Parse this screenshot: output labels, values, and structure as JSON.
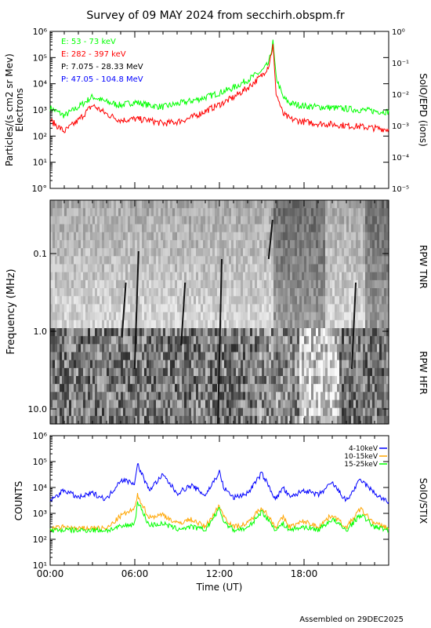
{
  "title": "Survey of 09 MAY 2024 from secchirh.obspm.fr",
  "footer": "Assembled on 29DEC2025",
  "colors": {
    "green": "#00ff00",
    "red": "#ff0000",
    "black": "#000000",
    "blue": "#0000ff",
    "orange": "#ffa500"
  },
  "chart_data": [
    {
      "type": "line",
      "panel": "particles",
      "ylabel": "Particles/(s cm2 sr Mev) Electrons",
      "ylabel_lines": [
        "Particles/(s cm2 sr Mev)",
        "Electrons"
      ],
      "right_label": "SolO/EPD (ions)",
      "yscale": "log",
      "ylim": [
        1,
        1000000
      ],
      "y2lim": [
        1e-05,
        1
      ],
      "yticks": [
        "10°",
        "10¹",
        "10²",
        "10³",
        "10⁴",
        "10⁵",
        "10⁶"
      ],
      "y2ticks": [
        "10⁻⁵",
        "10⁻⁴",
        "10⁻³",
        "10⁻²",
        "10⁻¹",
        "10⁰"
      ],
      "legend": [
        "E: 53 - 73 keV",
        "E: 282 - 397 keV",
        "P: 7.075 - 28.33 MeV",
        "P: 47.05 - 104.8 MeV"
      ],
      "x": [
        0,
        1,
        2,
        3,
        4,
        5,
        6,
        7,
        8,
        9,
        10,
        11,
        12,
        13,
        14,
        15,
        15.5,
        15.8,
        16,
        16.5,
        17,
        18,
        19,
        20,
        21,
        22,
        23,
        24
      ],
      "series": [
        {
          "name": "E: 53 - 73 keV",
          "color": "green",
          "values": [
            1200,
            600,
            1300,
            3200,
            2000,
            1500,
            2000,
            1500,
            1300,
            1700,
            2200,
            3000,
            4500,
            7000,
            14000,
            30000,
            60000,
            400000,
            20000,
            3000,
            1800,
            1400,
            1300,
            1200,
            1100,
            1000,
            900,
            850
          ]
        },
        {
          "name": "E: 282 - 397 keV",
          "color": "red",
          "values": [
            400,
            150,
            400,
            1500,
            700,
            400,
            450,
            400,
            300,
            350,
            500,
            900,
            1600,
            3000,
            7000,
            20000,
            50000,
            300000,
            5000,
            700,
            450,
            350,
            300,
            280,
            250,
            230,
            200,
            180
          ]
        }
      ]
    },
    {
      "type": "heatmap",
      "panel": "radio",
      "ylabel": "Frequency (MHz)",
      "yscale": "log",
      "yticks": [
        "0.1",
        "1.0",
        "10.0"
      ],
      "right_labels": [
        "RPW TNR",
        "RPW HFR"
      ]
    },
    {
      "type": "line",
      "panel": "xray",
      "ylabel": "COUNTS",
      "right_label": "SolO/STIX",
      "xlabel": "Time (UT)",
      "yscale": "log",
      "ylim": [
        10,
        1000000
      ],
      "yticks": [
        "10¹",
        "10²",
        "10³",
        "10⁴",
        "10⁵",
        "10⁶"
      ],
      "xticks": [
        "00:00",
        "06:00",
        "12:00",
        "18:00"
      ],
      "x": [
        0,
        1,
        2,
        3,
        4,
        5,
        6,
        6.2,
        7,
        8,
        9,
        10,
        11,
        12,
        12.3,
        13,
        14,
        15,
        16,
        16.5,
        17,
        18,
        19,
        20,
        21,
        22,
        23,
        24
      ],
      "series": [
        {
          "name": "4-10keV",
          "color": "blue",
          "values": [
            3000,
            8000,
            4000,
            6000,
            3500,
            20000,
            15000,
            80000,
            8000,
            30000,
            6000,
            12000,
            5000,
            40000,
            10000,
            4000,
            6000,
            35000,
            3500,
            10000,
            4000,
            8000,
            5000,
            15000,
            3000,
            20000,
            6000,
            2500
          ]
        },
        {
          "name": "10-15keV",
          "color": "orange",
          "values": [
            250,
            300,
            250,
            280,
            250,
            800,
            1500,
            5000,
            700,
            900,
            400,
            600,
            300,
            2000,
            800,
            300,
            400,
            1800,
            300,
            700,
            300,
            500,
            300,
            900,
            280,
            1500,
            400,
            280
          ]
        },
        {
          "name": "15-25keV",
          "color": "green",
          "values": [
            220,
            230,
            220,
            230,
            220,
            300,
            400,
            3000,
            350,
            400,
            250,
            300,
            230,
            1500,
            500,
            230,
            260,
            1200,
            230,
            400,
            230,
            300,
            230,
            600,
            220,
            900,
            300,
            230
          ]
        }
      ]
    }
  ]
}
